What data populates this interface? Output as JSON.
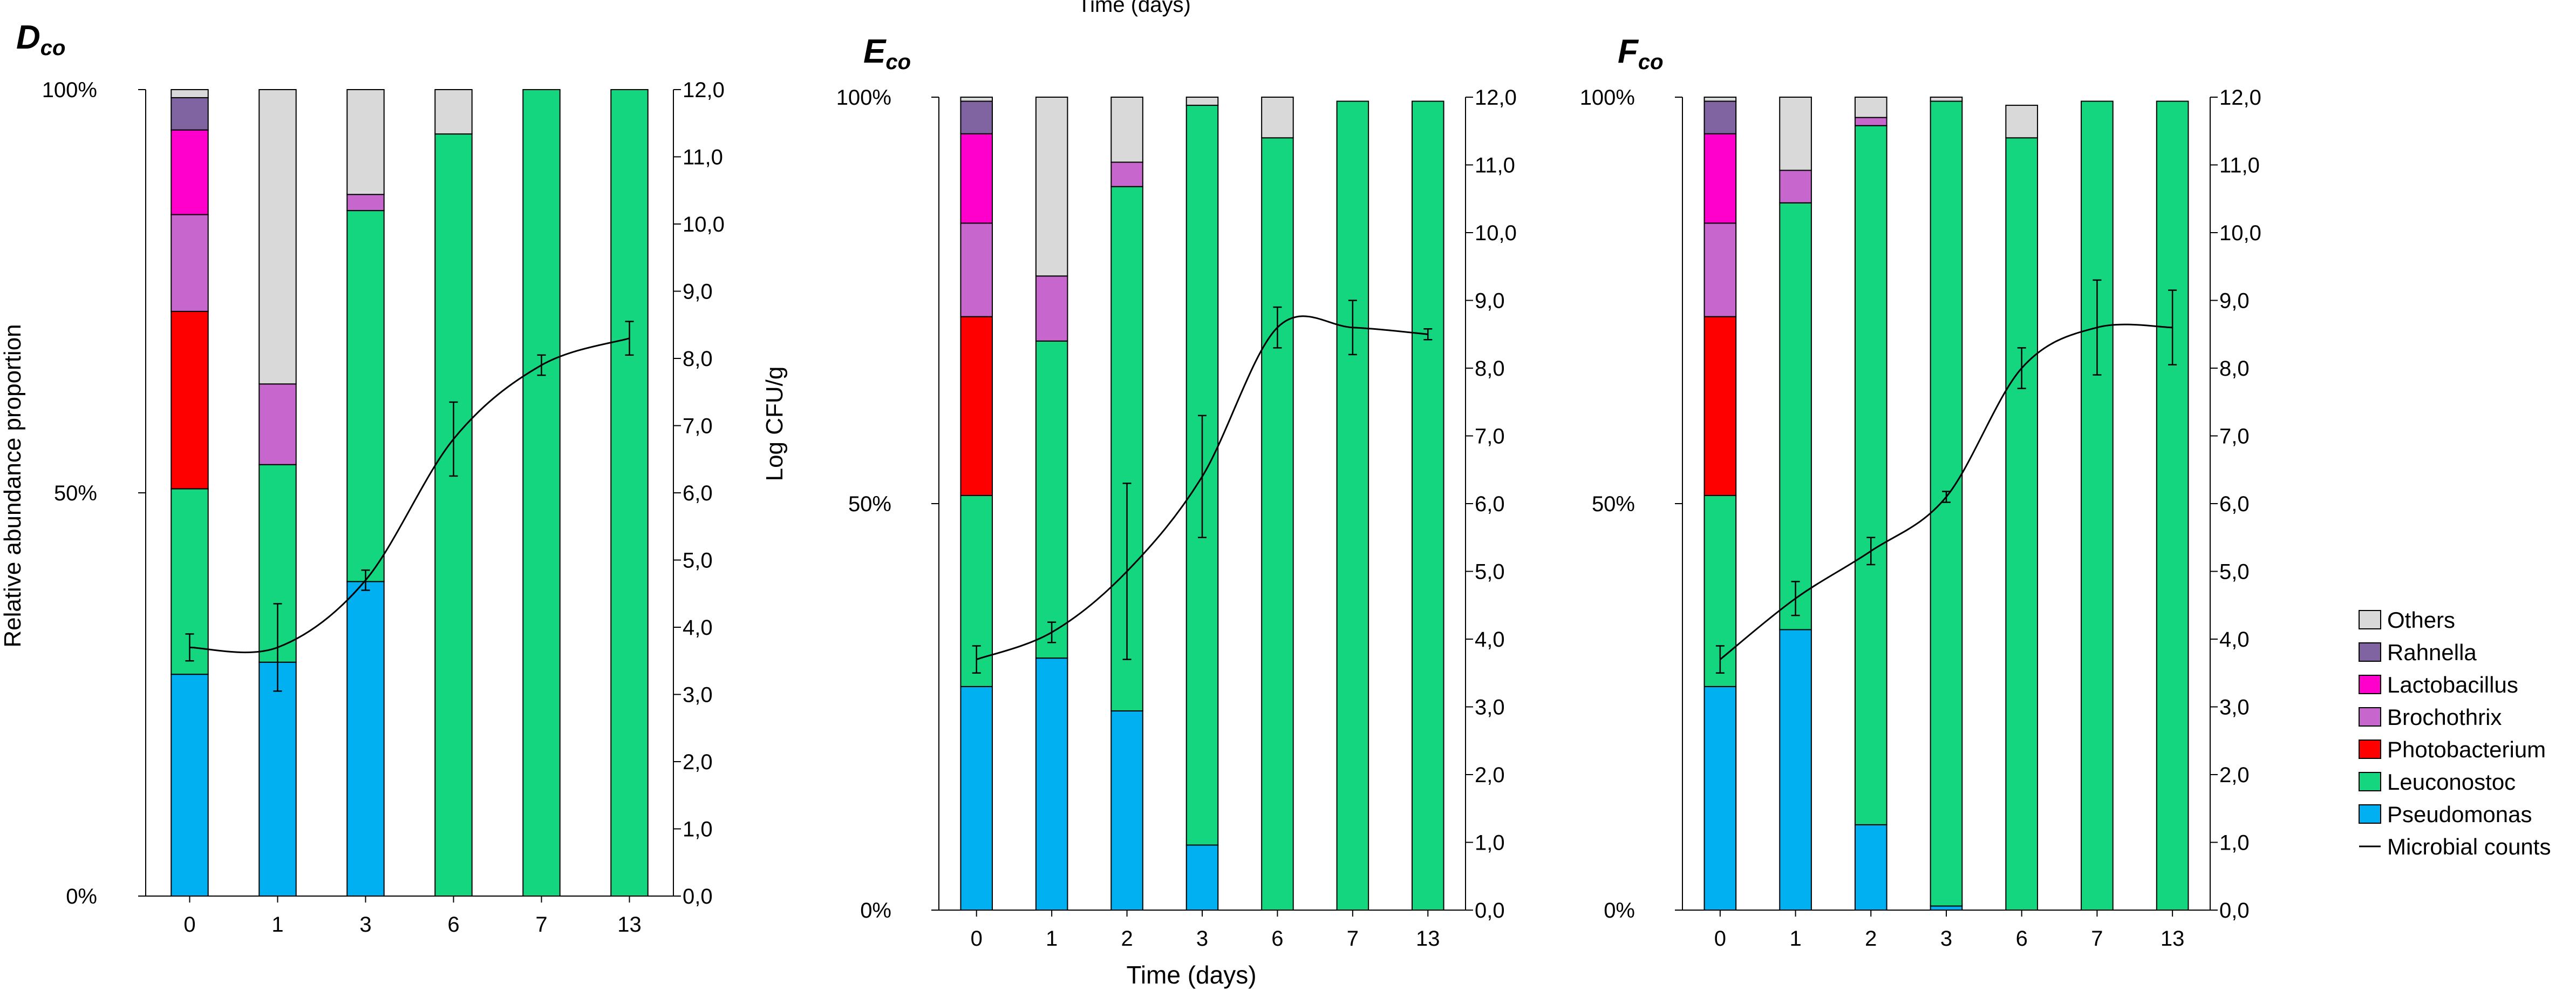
{
  "figure": {
    "top_caption": "Time (days)",
    "x_axis_label": "Time (days)",
    "y_left_label": "Relative abundance proportion",
    "y_right_label": "Log CFU/g",
    "y_left_ticks": [
      "0%",
      "50%",
      "100%"
    ],
    "y_right_ticks": [
      "0,0",
      "1,0",
      "2,0",
      "3,0",
      "4,0",
      "5,0",
      "6,0",
      "7,0",
      "8,0",
      "9,0",
      "10,0",
      "11,0",
      "12,0"
    ]
  },
  "legend": [
    {
      "label": "Others",
      "color": "#d9d9d9"
    },
    {
      "label": "Rahnella",
      "color": "#8064a2"
    },
    {
      "label": "Lactobacillus",
      "color": "#ff00cc"
    },
    {
      "label": "Brochothrix",
      "color": "#c766cc"
    },
    {
      "label": "Photobacterium",
      "color": "#ff0000"
    },
    {
      "label": "Leuconostoc",
      "color": "#14d67f"
    },
    {
      "label": "Pseudomonas",
      "color": "#00b0f0"
    },
    {
      "label": "Microbial counts",
      "color": "#000000"
    }
  ],
  "chart_data": [
    {
      "type": "bar",
      "stacked": true,
      "title_main": "D",
      "title_sub": "co",
      "categories": [
        "0",
        "1",
        "3",
        "6",
        "7",
        "13"
      ],
      "y_left_range": [
        0,
        100
      ],
      "y_right_range": [
        0,
        12
      ],
      "series": [
        {
          "name": "Pseudomonas",
          "values": [
            27.5,
            29,
            39,
            0,
            0,
            0
          ]
        },
        {
          "name": "Leuconostoc",
          "values": [
            23,
            24.5,
            46,
            94.5,
            100,
            100
          ]
        },
        {
          "name": "Photobacterium",
          "values": [
            22,
            0,
            0,
            0,
            0,
            0
          ]
        },
        {
          "name": "Brochothrix",
          "values": [
            12,
            10,
            2,
            0,
            0,
            0
          ]
        },
        {
          "name": "Lactobacillus",
          "values": [
            10.5,
            0,
            0,
            0,
            0,
            0
          ]
        },
        {
          "name": "Rahnella",
          "values": [
            4,
            0,
            0,
            0,
            0,
            0
          ]
        },
        {
          "name": "Others",
          "values": [
            1,
            36.5,
            13,
            5.5,
            0,
            0
          ]
        }
      ],
      "line": {
        "name": "Microbial counts",
        "values": [
          3.7,
          3.7,
          4.7,
          6.8,
          7.9,
          8.3
        ],
        "errors": [
          0.2,
          0.65,
          0.15,
          0.55,
          0.15,
          0.25
        ]
      }
    },
    {
      "type": "bar",
      "stacked": true,
      "title_main": "E",
      "title_sub": "co",
      "categories": [
        "0",
        "1",
        "2",
        "3",
        "6",
        "7",
        "13"
      ],
      "y_left_range": [
        0,
        100
      ],
      "y_right_range": [
        0,
        12
      ],
      "series": [
        {
          "name": "Pseudomonas",
          "values": [
            27.5,
            31,
            24.5,
            8,
            0,
            0,
            0
          ]
        },
        {
          "name": "Leuconostoc",
          "values": [
            23.5,
            39,
            64.5,
            91,
            95,
            99.5,
            99.5
          ]
        },
        {
          "name": "Photobacterium",
          "values": [
            22,
            0,
            0,
            0,
            0,
            0,
            0
          ]
        },
        {
          "name": "Brochothrix",
          "values": [
            11.5,
            8,
            3,
            0,
            0,
            0,
            0
          ]
        },
        {
          "name": "Lactobacillus",
          "values": [
            11,
            0,
            0,
            0,
            0,
            0,
            0
          ]
        },
        {
          "name": "Rahnella",
          "values": [
            4,
            0,
            0,
            0,
            0,
            0,
            0
          ]
        },
        {
          "name": "Others",
          "values": [
            0.5,
            22,
            8,
            1,
            5,
            0,
            0
          ]
        }
      ],
      "line": {
        "name": "Microbial counts",
        "values": [
          3.7,
          4.1,
          5.0,
          6.4,
          8.6,
          8.6,
          8.5
        ],
        "errors": [
          0.2,
          0.15,
          1.3,
          0.9,
          0.3,
          0.4,
          0.08
        ]
      }
    },
    {
      "type": "bar",
      "stacked": true,
      "title_main": "F",
      "title_sub": "co",
      "categories": [
        "0",
        "1",
        "2",
        "3",
        "6",
        "7",
        "13"
      ],
      "y_left_range": [
        0,
        100
      ],
      "y_right_range": [
        0,
        12
      ],
      "series": [
        {
          "name": "Pseudomonas",
          "values": [
            27.5,
            34.5,
            10.5,
            0.5,
            0,
            0,
            0
          ]
        },
        {
          "name": "Leuconostoc",
          "values": [
            23.5,
            52.5,
            86,
            99,
            95,
            99.5,
            99.5
          ]
        },
        {
          "name": "Photobacterium",
          "values": [
            22,
            0,
            0,
            0,
            0,
            0,
            0
          ]
        },
        {
          "name": "Brochothrix",
          "values": [
            11.5,
            4,
            1,
            0,
            0,
            0,
            0
          ]
        },
        {
          "name": "Lactobacillus",
          "values": [
            11,
            0,
            0,
            0,
            0,
            0,
            0
          ]
        },
        {
          "name": "Rahnella",
          "values": [
            4,
            0,
            0,
            0,
            0,
            0,
            0
          ]
        },
        {
          "name": "Others",
          "values": [
            0.5,
            9,
            2.5,
            0.5,
            4,
            0,
            0
          ]
        }
      ],
      "line": {
        "name": "Microbial counts",
        "values": [
          3.7,
          4.6,
          5.3,
          6.1,
          8.0,
          8.6,
          8.6
        ],
        "errors": [
          0.2,
          0.25,
          0.2,
          0.08,
          0.3,
          0.7,
          0.55
        ]
      }
    }
  ]
}
